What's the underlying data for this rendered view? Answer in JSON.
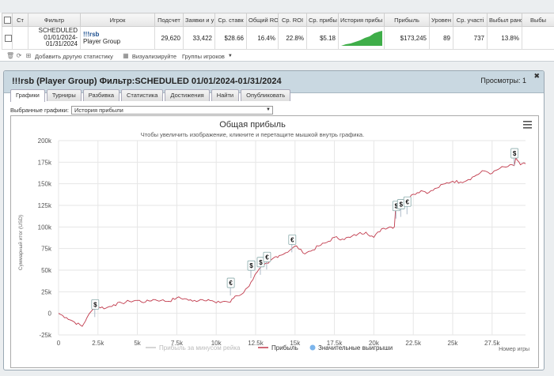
{
  "stats_table": {
    "headers": [
      "Ст",
      "Фильтр",
      "Игрок",
      "Подсчет",
      "Заявки и у",
      "Ср. ставк",
      "Общий ROI",
      "Ср. ROI",
      "Ср. прибы",
      "История прибы",
      "Прибыль",
      "Уровен",
      "Ср. участі",
      "Выбыл рано",
      "Выбы"
    ],
    "row": {
      "filter_line1": "SCHEDULED",
      "filter_line2": "01/01/2024-",
      "filter_line3": "01/31/2024",
      "player_name": "!!!rsb",
      "player_group": "Player Group",
      "count": "29,620",
      "entries": "33,422",
      "avg_stake": "$28.66",
      "total_roi": "16.4%",
      "avg_roi": "22.8%",
      "avg_profit": "$5.18",
      "profit": "$173,245",
      "level": "89",
      "avg_field": "737",
      "early_out": "13.8%"
    },
    "toolbar": {
      "add_stats": "Добавить другую статистику",
      "visualize": "Визуализируйте",
      "player_groups": "Группы игроков"
    }
  },
  "report": {
    "title": "!!!rsb (Player Group) Фильтр:SCHEDULED 01/01/2024-01/31/2024",
    "views": "Просмотры: 1",
    "tabs": [
      "Графики",
      "Турниры",
      "Разбивка",
      "Статистика",
      "Достижения",
      "Найти",
      "Опубликовать"
    ],
    "active_tab": 0,
    "chart_select_label": "Выбранные графики:",
    "chart_select_value": "История прибыли"
  },
  "chart_data": {
    "type": "line",
    "title": "Общая прибыль",
    "subtitle": "Чтобы увеличить изображение, кликните и перетащите мышкой внутрь графика.",
    "ylabel": "Суммарный итог (USD)",
    "xlabel": "Номер игры",
    "xlim": [
      0,
      29620
    ],
    "ylim": [
      -25000,
      200000
    ],
    "x_ticks": [
      0,
      2500,
      5000,
      7500,
      10000,
      12500,
      15000,
      17500,
      20000,
      22500,
      25000,
      27500
    ],
    "x_tick_labels": [
      "0",
      "2.5k",
      "5k",
      "7.5k",
      "10k",
      "12.5k",
      "15k",
      "17.5k",
      "20k",
      "22.5k",
      "25k",
      "27.5k"
    ],
    "y_ticks": [
      -25000,
      0,
      25000,
      50000,
      75000,
      100000,
      125000,
      150000,
      175000,
      200000
    ],
    "y_tick_labels": [
      "-25k",
      "0",
      "25k",
      "50k",
      "75k",
      "100k",
      "125k",
      "150k",
      "175k",
      "200k"
    ],
    "legend": [
      "Прибыль за минусом рейка",
      "Прибыль",
      "Значительные выигрыши"
    ],
    "legend_position": "bottom-center",
    "series": [
      {
        "name": "Прибыль",
        "color": "#c0394b",
        "x": [
          0,
          500,
          1000,
          1500,
          1800,
          2200,
          2400,
          3000,
          3500,
          4000,
          4500,
          5000,
          5500,
          6000,
          6500,
          7000,
          7500,
          8000,
          8500,
          9000,
          9500,
          10000,
          10500,
          10900,
          11200,
          11600,
          12000,
          12200,
          12600,
          13000,
          13300,
          13700,
          14000,
          14400,
          14800,
          15100,
          15500,
          16000,
          16500,
          17000,
          17500,
          18000,
          18500,
          19000,
          19500,
          20000,
          20500,
          21000,
          21300,
          21400,
          21700,
          22000,
          22500,
          23000,
          23500,
          24000,
          24500,
          25000,
          25500,
          26000,
          26500,
          27000,
          27500,
          28000,
          28500,
          28900,
          29000,
          29300,
          29620
        ],
        "y": [
          0,
          -5000,
          -10000,
          -15000,
          -5000,
          5000,
          8000,
          6000,
          10000,
          12000,
          14000,
          15000,
          13000,
          16000,
          15000,
          14000,
          18000,
          17000,
          14000,
          16000,
          16000,
          12000,
          14000,
          13000,
          20000,
          22000,
          30000,
          36000,
          48000,
          55000,
          58000,
          65000,
          67000,
          70000,
          75000,
          78000,
          70000,
          72000,
          78000,
          82000,
          88000,
          86000,
          88000,
          92000,
          94000,
          88000,
          98000,
          100000,
          100000,
          128000,
          130000,
          132000,
          138000,
          142000,
          140000,
          145000,
          150000,
          153000,
          152000,
          155000,
          160000,
          165000,
          162000,
          168000,
          170000,
          171000,
          180000,
          172000,
          173245
        ]
      }
    ],
    "big_wins": [
      {
        "x": 2300,
        "y": 3000,
        "symbol": "$"
      },
      {
        "x": 10900,
        "y": 28000,
        "symbol": "€"
      },
      {
        "x": 12200,
        "y": 48000,
        "symbol": "$"
      },
      {
        "x": 12800,
        "y": 52000,
        "symbol": "$"
      },
      {
        "x": 13200,
        "y": 58000,
        "symbol": "€"
      },
      {
        "x": 14800,
        "y": 78000,
        "symbol": "€"
      },
      {
        "x": 21400,
        "y": 117000,
        "symbol": "$"
      },
      {
        "x": 21700,
        "y": 119000,
        "symbol": "$"
      },
      {
        "x": 22100,
        "y": 122000,
        "symbol": "€"
      },
      {
        "x": 28900,
        "y": 178000,
        "symbol": "$"
      }
    ],
    "colors": {
      "profit": "#c0394b",
      "no_rake": "#c8c8c8",
      "big_wins": "#7cb5ec"
    }
  }
}
